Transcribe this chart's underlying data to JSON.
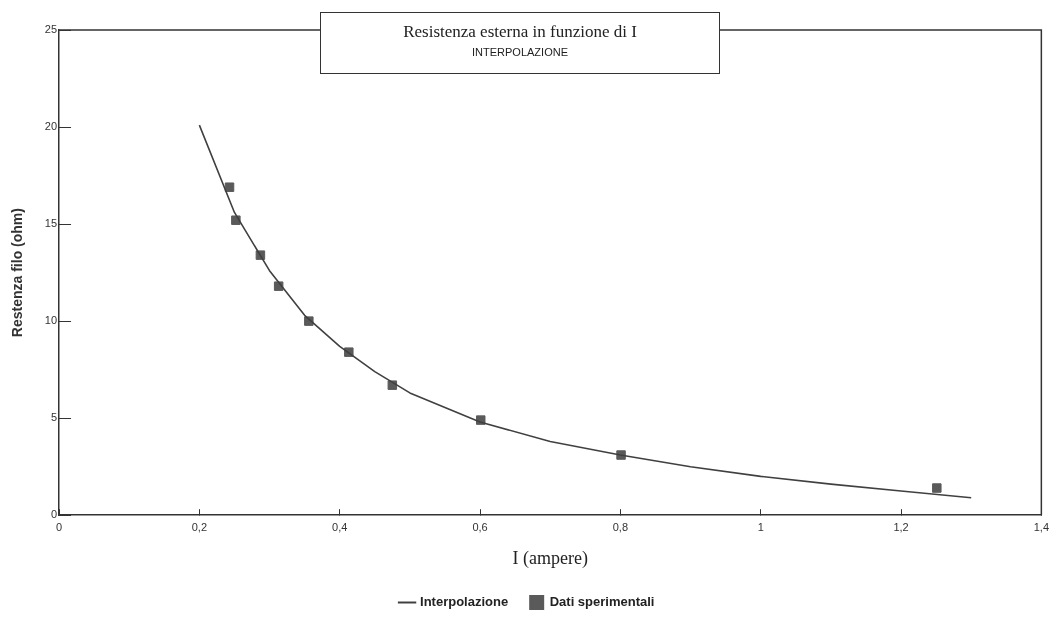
{
  "chart_data": {
    "type": "scatter",
    "title": "Resistenza esterna in funzione di I",
    "subtitle": "INTERPOLAZIONE",
    "xlabel": "I (ampere)",
    "ylabel": "Restenza filo (ohm)",
    "xlim": [
      0,
      1.4
    ],
    "xticks": [
      0,
      {
        "value": 0.2,
        "label": "0,2"
      },
      {
        "value": 0.4,
        "label": "0,4"
      },
      {
        "value": 0.6,
        "label": "0,6"
      },
      {
        "value": 0.8,
        "label": "0,8"
      },
      1,
      {
        "value": 1.2,
        "label": "1,2"
      },
      {
        "value": 1.4,
        "label": "1,4"
      }
    ],
    "ylim": [
      0,
      25
    ],
    "yticks": [
      0,
      5,
      10,
      15,
      20,
      25
    ],
    "grid": false,
    "legend": "bottom",
    "series": [
      {
        "name": "Interpolazione",
        "type": "line",
        "color": "#404040",
        "marker": "none",
        "line_style": "solid",
        "x": [
          0.2,
          0.25,
          0.3,
          0.35,
          0.4,
          0.45,
          0.5,
          0.6,
          0.7,
          0.8,
          0.9,
          1.0,
          1.1,
          1.2,
          1.3
        ],
        "values": [
          20.1,
          15.6,
          12.6,
          10.3,
          8.7,
          7.4,
          6.3,
          4.8,
          3.8,
          3.1,
          2.5,
          2.0,
          1.6,
          1.25,
          0.9
        ]
      },
      {
        "name": "Dati sperimentali",
        "type": "scatter",
        "color": "#5a5a5a",
        "marker": "square",
        "x": [
          0.243,
          0.252,
          0.287,
          0.313,
          0.356,
          0.413,
          0.475,
          0.601,
          0.801,
          1.251
        ],
        "values": [
          16.9,
          15.2,
          13.4,
          11.8,
          10.0,
          8.4,
          6.7,
          4.9,
          3.1,
          1.4
        ]
      }
    ]
  }
}
